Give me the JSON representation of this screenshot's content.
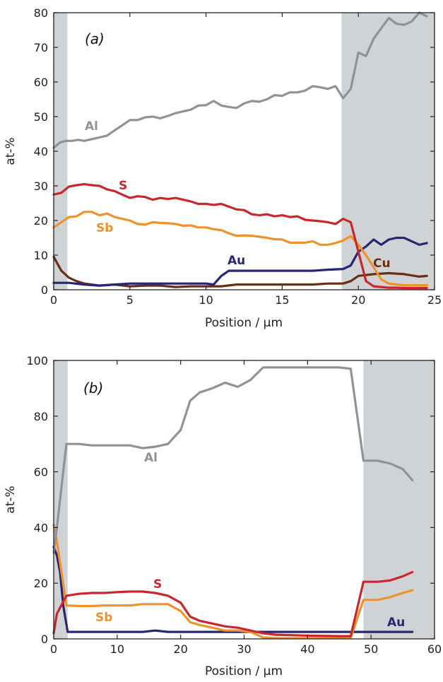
{
  "chart_data": [
    {
      "type": "line",
      "panel_label": "(a)",
      "xlabel": "Position / µm",
      "ylabel": "at-%",
      "xlim": [
        0,
        25
      ],
      "ylim": [
        0,
        80
      ],
      "xticks": [
        0,
        5,
        10,
        15,
        20,
        25
      ],
      "yticks": [
        0,
        10,
        20,
        30,
        40,
        50,
        60,
        70,
        80
      ],
      "shaded_regions": [
        [
          0,
          0.9
        ],
        [
          18.9,
          25
        ]
      ],
      "colors": {
        "Al": "#8f9396",
        "S": "#c9262e",
        "Sb": "#f0922b",
        "Au": "#262673",
        "Cu": "#6b2d16",
        "shade": "#d0d3d6"
      },
      "series": [
        {
          "name": "Al",
          "x": [
            0,
            0.4,
            0.8,
            1.2,
            1.6,
            2,
            2.5,
            3,
            3.5,
            4,
            4.5,
            5,
            5.5,
            6,
            6.5,
            7,
            7.5,
            8,
            8.5,
            9,
            9.5,
            10,
            10.5,
            11,
            11.5,
            12,
            12.5,
            13,
            13.5,
            14,
            14.5,
            15,
            15.5,
            16,
            16.5,
            17,
            17.5,
            18,
            18.5,
            19,
            19.5,
            20,
            20.5,
            21,
            21.5,
            22,
            22.5,
            23,
            23.5,
            24,
            24.5
          ],
          "y": [
            41,
            42.5,
            43,
            43,
            43.3,
            43,
            43.5,
            44,
            44.5,
            46,
            47.5,
            49,
            49,
            49.8,
            50,
            49.5,
            50.2,
            51,
            51.5,
            52,
            53.2,
            53.3,
            54.5,
            53.2,
            52.8,
            52.5,
            53.8,
            54.5,
            54.3,
            55,
            56.2,
            56,
            57,
            57,
            57.5,
            58.8,
            58.5,
            58,
            58.8,
            55.3,
            58,
            68.5,
            67.5,
            72.5,
            75.5,
            78.5,
            76.8,
            76.5,
            77.5,
            80,
            79
          ]
        },
        {
          "name": "S",
          "x": [
            0,
            0.5,
            1,
            1.5,
            2,
            2.5,
            3,
            3.5,
            4,
            4.5,
            5,
            5.5,
            6,
            6.5,
            7,
            7.5,
            8,
            8.5,
            9,
            9.5,
            10,
            10.5,
            11,
            11.5,
            12,
            12.5,
            13,
            13.5,
            14,
            14.5,
            15,
            15.5,
            16,
            16.5,
            17,
            17.5,
            18,
            18.5,
            19,
            19.5,
            20,
            20.5,
            21,
            21.5,
            22,
            22.5,
            23,
            23.5,
            24,
            24.5
          ],
          "y": [
            27.5,
            28,
            29.8,
            30.2,
            30.5,
            30.2,
            30,
            29,
            28.5,
            27.5,
            26.5,
            27,
            26.8,
            26,
            26.5,
            26.2,
            26.5,
            26,
            25.5,
            24.8,
            24.8,
            24.5,
            24.8,
            24,
            23.2,
            23,
            21.8,
            21.5,
            21.8,
            21.2,
            21.5,
            21,
            21.2,
            20.2,
            20,
            19.8,
            19.5,
            19,
            20.5,
            19.5,
            11,
            2.5,
            1,
            0.8,
            0.6,
            0.6,
            0.5,
            0.5,
            0.5,
            0.5
          ]
        },
        {
          "name": "Sb",
          "x": [
            0,
            0.5,
            1,
            1.5,
            2,
            2.5,
            3,
            3.5,
            4,
            4.5,
            5,
            5.5,
            6,
            6.5,
            7,
            7.5,
            8,
            8.5,
            9,
            9.5,
            10,
            10.5,
            11,
            11.5,
            12,
            12.5,
            13,
            13.5,
            14,
            14.5,
            15,
            15.5,
            16,
            16.5,
            17,
            17.5,
            18,
            18.5,
            19,
            19.5,
            20,
            20.5,
            21,
            21.5,
            22,
            22.5,
            23,
            23.5,
            24,
            24.5
          ],
          "y": [
            18,
            19.5,
            21,
            21.2,
            22.5,
            22.5,
            21.5,
            22,
            21,
            20.5,
            20,
            19,
            18.8,
            19.5,
            19.3,
            19.2,
            19,
            18.5,
            18.6,
            18,
            18,
            17.5,
            17.2,
            16.3,
            15.6,
            15.7,
            15.6,
            15.3,
            15,
            14.6,
            14.5,
            13.6,
            13.6,
            13.6,
            14,
            13,
            13,
            13.5,
            14.2,
            15.5,
            13,
            10,
            6.5,
            3,
            1.8,
            1.5,
            1.3,
            1.3,
            1.3,
            1.3
          ]
        },
        {
          "name": "Au",
          "x": [
            0,
            1,
            2,
            3,
            4,
            5,
            6,
            7,
            8,
            9,
            10,
            10.5,
            11,
            11.5,
            12,
            13,
            14,
            15,
            16,
            17,
            18,
            19,
            19.5,
            20,
            20.5,
            21,
            21.5,
            22,
            22.5,
            23,
            23.5,
            24,
            24.5
          ],
          "y": [
            2,
            2,
            1.5,
            1.2,
            1.5,
            1.8,
            1.8,
            1.8,
            1.8,
            1.8,
            1.8,
            1.5,
            4,
            5.5,
            5.5,
            5.5,
            5.5,
            5.5,
            5.5,
            5.5,
            5.8,
            6,
            7,
            11,
            12.5,
            14.5,
            13,
            14.5,
            15,
            15,
            14,
            13,
            13.5
          ]
        },
        {
          "name": "Cu",
          "x": [
            0,
            0.5,
            1,
            1.5,
            2,
            3,
            4,
            5,
            6,
            7,
            8,
            9,
            10,
            11,
            12,
            13,
            14,
            15,
            16,
            17,
            18,
            19,
            19.5,
            20,
            21,
            22,
            23,
            24,
            24.5
          ],
          "y": [
            9.5,
            5.5,
            3.5,
            2.5,
            1.8,
            1.2,
            1.5,
            1,
            1.2,
            1.2,
            0.8,
            1,
            1,
            1,
            1.5,
            1.5,
            1.5,
            1.5,
            1.5,
            1.5,
            1.8,
            1.8,
            2.5,
            4,
            4.5,
            4.8,
            4.5,
            3.8,
            4
          ]
        }
      ],
      "labels": {
        "Al": "Al",
        "S": "S",
        "Sb": "Sb",
        "Au": "Au",
        "Cu": "Cu"
      }
    },
    {
      "type": "line",
      "panel_label": "(b)",
      "xlabel": "Position / µm",
      "ylabel": "at-%",
      "xlim": [
        0,
        60
      ],
      "ylim": [
        0,
        100
      ],
      "xticks": [
        0,
        10,
        20,
        30,
        40,
        50,
        60
      ],
      "yticks": [
        0,
        20,
        40,
        60,
        80,
        100
      ],
      "shaded_regions": [
        [
          0,
          2.2
        ],
        [
          48.8,
          60
        ]
      ],
      "colors": {
        "Al": "#8f9396",
        "S": "#c9262e",
        "Sb": "#f0922b",
        "Au": "#262673",
        "shade": "#d0d3d6"
      },
      "series": [
        {
          "name": "Al",
          "x": [
            0,
            0.5,
            2,
            4,
            6,
            8,
            10,
            12,
            14,
            16,
            18,
            20,
            21.5,
            23,
            25,
            27,
            29,
            31,
            33,
            35,
            37,
            39,
            41,
            43,
            45,
            46.8,
            48.8,
            51,
            53,
            55,
            56.5
          ],
          "y": [
            31,
            40,
            70,
            70,
            69.5,
            69.5,
            69.5,
            69.5,
            68.5,
            69,
            70,
            75,
            85.5,
            88.5,
            90,
            92,
            90.5,
            93,
            97.5,
            97.5,
            97.5,
            97.5,
            97.5,
            97.5,
            97.5,
            97,
            64,
            64,
            63,
            61,
            57
          ]
        },
        {
          "name": "S",
          "x": [
            0,
            0.5,
            2,
            4,
            6,
            8,
            10,
            12,
            14,
            16,
            18,
            20,
            21.5,
            23,
            25,
            27,
            29,
            31,
            33,
            35,
            40,
            45,
            46.8,
            48.8,
            51,
            53,
            55,
            56.5
          ],
          "y": [
            2,
            9,
            15.5,
            16.2,
            16.5,
            16.5,
            16.8,
            17,
            17,
            16.5,
            15.5,
            13,
            8,
            6.5,
            5.5,
            4.5,
            4,
            3,
            2,
            1.5,
            1.2,
            1,
            1,
            20.5,
            20.5,
            21,
            22.5,
            24
          ]
        },
        {
          "name": "Sb",
          "x": [
            0,
            0.5,
            2,
            4,
            6,
            8,
            10,
            12,
            14,
            16,
            18,
            20,
            21.5,
            23,
            25,
            27,
            29,
            31,
            33,
            35,
            40,
            45,
            46.8,
            48.8,
            51,
            53,
            55,
            56.5
          ],
          "y": [
            41,
            35,
            12,
            11.8,
            11.8,
            12,
            12,
            12,
            12.5,
            12.5,
            12.5,
            10,
            6,
            5,
            4,
            3,
            3,
            2.5,
            0.5,
            0.3,
            0.3,
            0.3,
            0.3,
            14,
            14,
            15,
            16.5,
            17.5
          ]
        },
        {
          "name": "Au",
          "x": [
            0,
            0.5,
            1,
            1.5,
            2.2,
            4,
            6,
            8,
            10,
            12,
            14,
            16,
            18,
            20,
            22,
            24,
            26,
            28,
            30,
            32,
            34,
            36,
            38,
            40,
            42,
            44,
            46,
            48,
            50,
            52,
            54,
            56.5
          ],
          "y": [
            33,
            30,
            24,
            12,
            2.5,
            2.5,
            2.5,
            2.5,
            2.5,
            2.5,
            2.5,
            3,
            2.5,
            2.5,
            2.5,
            2.5,
            2.5,
            2.5,
            2.5,
            2.5,
            2.5,
            2.5,
            2.5,
            2.5,
            2.5,
            2.5,
            2.5,
            2.5,
            2.5,
            2.5,
            2.5,
            2.5
          ]
        }
      ],
      "labels": {
        "Al": "Al",
        "S": "S",
        "Sb": "Sb",
        "Au": "Au"
      }
    }
  ]
}
